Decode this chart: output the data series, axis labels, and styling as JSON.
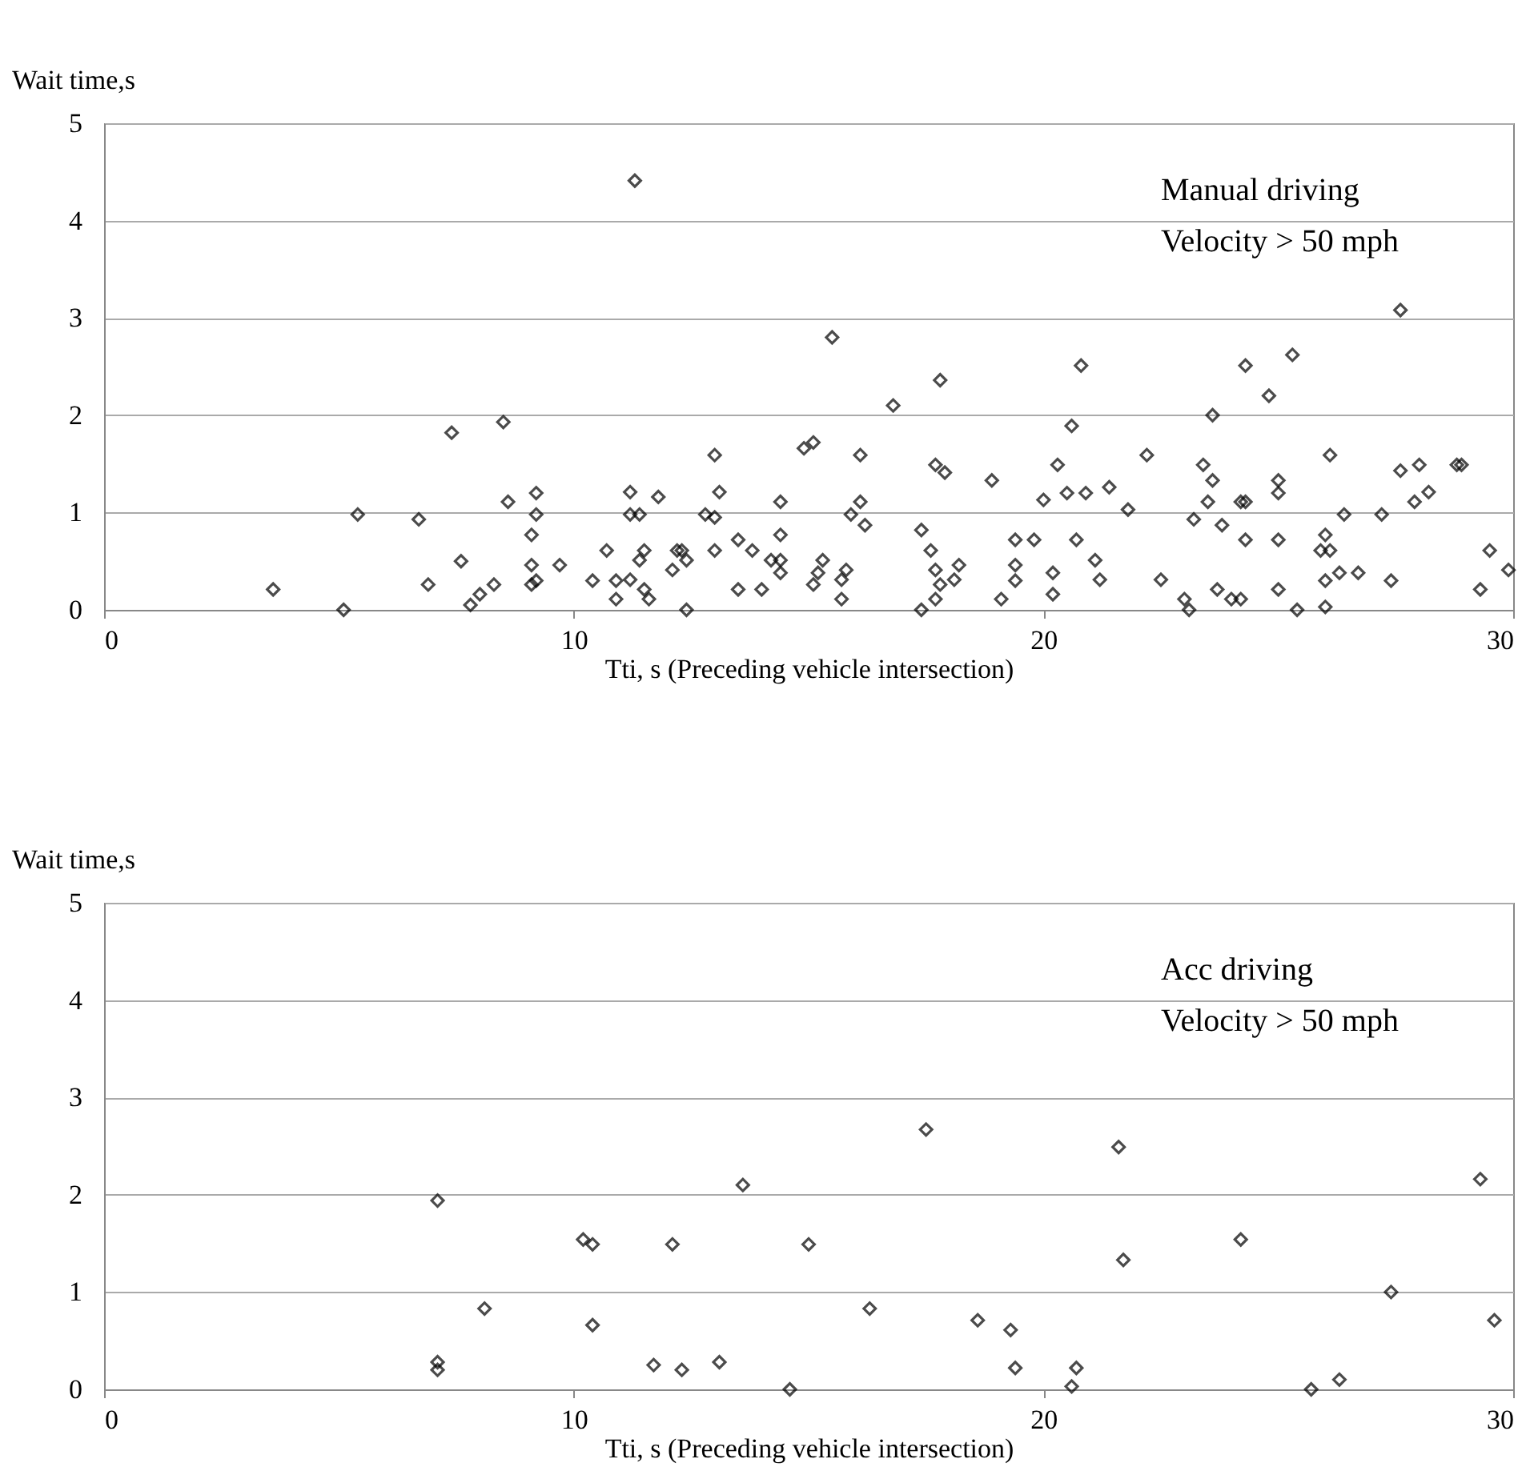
{
  "chart_data": [
    {
      "type": "scatter",
      "xlabel": "Tti, s (Preceding vehicle intersection)",
      "ylabel": "Wait time,s",
      "annotations": [
        "Manual driving",
        "Velocity > 50 mph"
      ],
      "xlim": [
        0,
        30
      ],
      "xticks": [
        0,
        10,
        20,
        30
      ],
      "ylim": [
        0,
        5
      ],
      "yticks": [
        0,
        1,
        2,
        3,
        4,
        5
      ],
      "grid": "y",
      "marker": "diamond",
      "series": [
        {
          "color": "#000000",
          "x": [
            3.6,
            5.1,
            5.4,
            6.7,
            6.9,
            7.4,
            7.6,
            7.8,
            8.0,
            8.3,
            8.5,
            8.6,
            9.2,
            9.2,
            9.1,
            9.1,
            9.1,
            9.2,
            9.7,
            11.3,
            10.4,
            10.7,
            10.9,
            10.9,
            11.2,
            11.2,
            11.4,
            11.2,
            11.4,
            11.5,
            11.5,
            11.6,
            11.8,
            12.1,
            12.2,
            12.3,
            12.4,
            12.4,
            12.8,
            13.0,
            13.0,
            13.1,
            13.0,
            13.5,
            13.5,
            13.8,
            14.0,
            14.2,
            14.4,
            14.4,
            14.4,
            14.4,
            14.9,
            15.1,
            15.5,
            15.1,
            15.2,
            15.3,
            15.7,
            15.7,
            15.8,
            15.9,
            16.1,
            16.1,
            16.2,
            16.8,
            17.8,
            17.4,
            17.6,
            17.4,
            17.7,
            17.7,
            17.8,
            18.1,
            18.2,
            17.7,
            17.9,
            18.9,
            19.1,
            19.4,
            19.4,
            19.4,
            19.8,
            20.0,
            20.3,
            20.2,
            20.2,
            20.5,
            20.6,
            20.8,
            20.7,
            20.9,
            21.1,
            21.2,
            21.4,
            21.8,
            22.2,
            22.5,
            23.0,
            23.1,
            23.2,
            23.4,
            23.6,
            23.6,
            23.5,
            23.8,
            23.7,
            24.0,
            24.2,
            24.2,
            24.3,
            24.3,
            24.3,
            24.8,
            25.3,
            25.0,
            25.0,
            25.0,
            25.0,
            25.4,
            26.0,
            25.9,
            26.1,
            26.1,
            26.0,
            26.0,
            26.3,
            26.4,
            26.7,
            27.2,
            27.4,
            27.6,
            27.6,
            28.0,
            27.9,
            28.2,
            28.8,
            28.9,
            29.3,
            29.5,
            29.9
          ],
          "values": [
            0.21,
            0,
            0.98,
            0.93,
            0.26,
            1.82,
            0.5,
            0.05,
            0.16,
            0.26,
            1.93,
            1.11,
            1.2,
            0.98,
            0.77,
            0.46,
            0.26,
            0.3,
            0.46,
            4.41,
            0.3,
            0.61,
            0.3,
            0.11,
            1.21,
            0.98,
            0.98,
            0.31,
            0.51,
            0.61,
            0.21,
            0.11,
            1.16,
            0.41,
            0.61,
            0.61,
            0.51,
            0,
            0.98,
            0.95,
            1.59,
            1.21,
            0.61,
            0.72,
            0.21,
            0.61,
            0.21,
            0.51,
            1.11,
            0.77,
            0.51,
            0.38,
            1.66,
            1.72,
            2.8,
            0.26,
            0.38,
            0.51,
            0.11,
            0.31,
            0.41,
            0.98,
            1.59,
            1.11,
            0.87,
            2.1,
            2.36,
            0.82,
            0.61,
            0,
            0.11,
            0.41,
            0.26,
            0.31,
            0.46,
            1.49,
            1.41,
            1.33,
            0.11,
            0.72,
            0.46,
            0.3,
            0.72,
            1.13,
            1.49,
            0.38,
            0.16,
            1.2,
            1.89,
            2.51,
            0.72,
            1.2,
            0.51,
            0.31,
            1.26,
            1.03,
            1.59,
            0.31,
            0.11,
            0,
            0.93,
            1.49,
            1.33,
            2.0,
            1.11,
            0.87,
            0.21,
            0.11,
            0.11,
            1.11,
            1.11,
            2.51,
            0.72,
            2.2,
            2.62,
            1.33,
            1.2,
            0.72,
            0.21,
            0,
            0.77,
            0.61,
            0.61,
            1.59,
            0.3,
            0.03,
            0.38,
            0.98,
            0.38,
            0.98,
            0.3,
            3.08,
            1.43,
            1.49,
            1.11,
            1.21,
            1.49,
            1.49,
            0.21,
            0.61,
            0.41
          ]
        }
      ]
    },
    {
      "type": "scatter",
      "xlabel": "Tti, s (Preceding vehicle intersection)",
      "ylabel": "Wait time,s",
      "annotations": [
        "Acc driving",
        "Velocity > 50 mph"
      ],
      "xlim": [
        0,
        30
      ],
      "xticks": [
        0,
        10,
        20,
        30
      ],
      "ylim": [
        0,
        5
      ],
      "yticks": [
        0,
        1,
        2,
        3,
        4,
        5
      ],
      "grid": "y",
      "marker": "diamond",
      "series": [
        {
          "color": "#000000",
          "x": [
            7.1,
            7.1,
            7.1,
            8.1,
            10.2,
            10.4,
            10.4,
            11.7,
            12.3,
            13.1,
            13.6,
            12.1,
            14.6,
            15.0,
            16.3,
            17.5,
            18.6,
            19.3,
            19.4,
            20.6,
            20.7,
            21.6,
            21.7,
            24.2,
            25.7,
            26.3,
            27.4,
            29.3,
            29.6
          ],
          "values": [
            1.94,
            0.28,
            0.2,
            0.83,
            1.54,
            1.49,
            0.66,
            0.25,
            0.2,
            0.28,
            2.1,
            1.49,
            0,
            1.49,
            0.83,
            2.67,
            0.71,
            0.61,
            0.22,
            0.03,
            0.22,
            2.49,
            1.33,
            1.54,
            0,
            0.1,
            1.0,
            2.16,
            0.71
          ]
        }
      ]
    }
  ]
}
